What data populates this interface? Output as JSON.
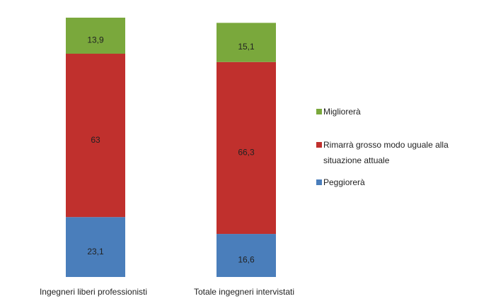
{
  "chart_data": {
    "type": "stacked_bar",
    "categories": [
      "Ingegneri liberi professionisti",
      "Totale ingegneri intervistati"
    ],
    "series": [
      {
        "name": "Peggiorerà",
        "color": "#4a7ebb",
        "values": [
          23.1,
          16.6
        ],
        "value_labels": [
          "23,1",
          "16,6"
        ]
      },
      {
        "name": "Rimarrà grosso modo uguale alla situazione attuale",
        "color": "#c0302d",
        "values": [
          63,
          66.3
        ],
        "value_labels": [
          "63",
          "66,3"
        ]
      },
      {
        "name": "Migliorerà",
        "color": "#7aa83c",
        "values": [
          13.9,
          15.1
        ],
        "value_labels": [
          "13,9",
          "15,1"
        ]
      }
    ],
    "ylim": [
      0,
      100
    ]
  }
}
